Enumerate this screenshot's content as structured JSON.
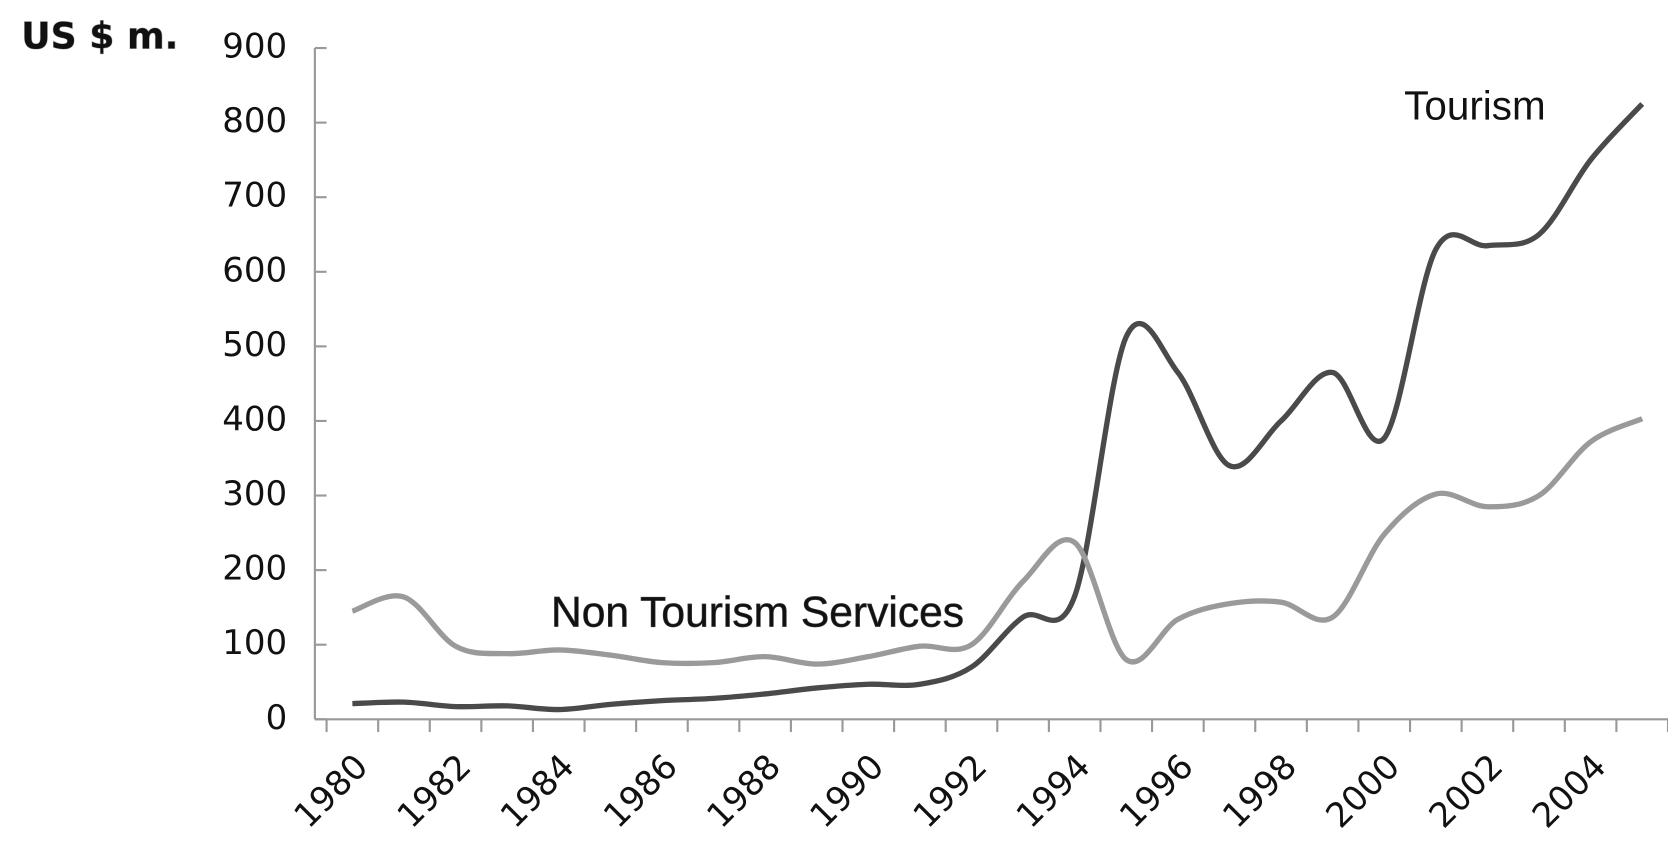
{
  "chart_data": {
    "type": "line",
    "ylabel": "US $ m.",
    "categories": [
      "1980",
      null,
      "1982",
      null,
      "1984",
      null,
      "1986",
      null,
      "1988",
      null,
      "1990",
      null,
      "1992",
      null,
      "1994",
      null,
      "1996",
      null,
      "1998",
      null,
      "2000",
      null,
      "2002",
      null,
      "2004",
      null
    ],
    "series": [
      {
        "name": "Tourism",
        "color": "#4a4a4a",
        "values": [
          21,
          23,
          17,
          18,
          13,
          20,
          25,
          28,
          34,
          42,
          47,
          47,
          70,
          137,
          165,
          513,
          465,
          340,
          400,
          465,
          377,
          630,
          635,
          650,
          750,
          825
        ]
      },
      {
        "name": "Non Tourism Services",
        "color": "#9a9a9a",
        "values": [
          145,
          164,
          98,
          88,
          93,
          86,
          76,
          76,
          84,
          74,
          84,
          98,
          100,
          185,
          237,
          80,
          134,
          155,
          157,
          137,
          248,
          302,
          285,
          300,
          372,
          403
        ]
      }
    ],
    "ylim": [
      0,
      900
    ],
    "yticks": [
      0,
      100,
      200,
      300,
      400,
      500,
      600,
      700,
      800,
      900
    ],
    "grid": false
  }
}
